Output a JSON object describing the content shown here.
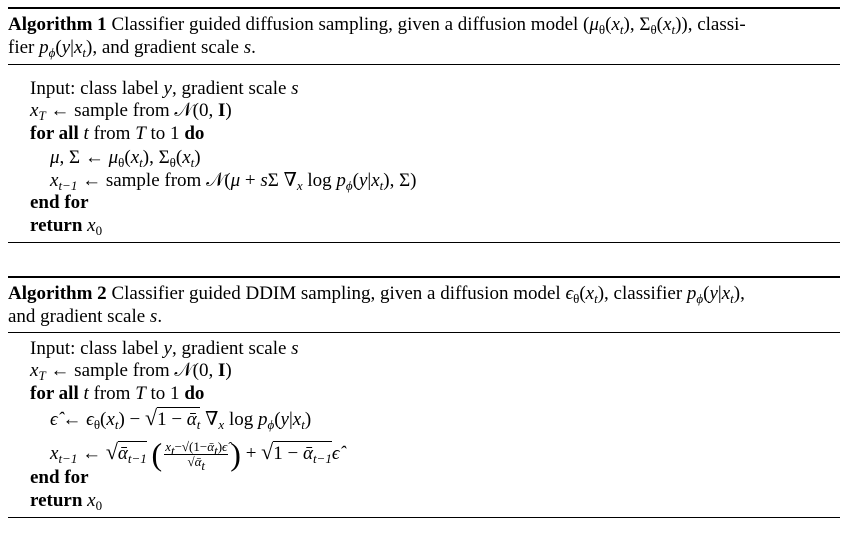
{
  "algorithms": [
    {
      "title_lines": [
        [
          [
            "b",
            "Algorithm 1"
          ],
          [
            "r",
            " Classifier guided diffusion sampling, given a diffusion model ("
          ],
          [
            "i",
            "μ"
          ],
          [
            "sr",
            "θ"
          ],
          [
            "r",
            "("
          ],
          [
            "i",
            "x"
          ],
          [
            "s",
            "t"
          ],
          [
            "r",
            "), Σ"
          ],
          [
            "sr",
            "θ"
          ],
          [
            "r",
            "("
          ],
          [
            "i",
            "x"
          ],
          [
            "s",
            "t"
          ],
          [
            "r",
            ")), classi-"
          ]
        ],
        [
          [
            "r",
            "fier "
          ],
          [
            "i",
            "p"
          ],
          [
            "s",
            "ϕ"
          ],
          [
            "r",
            "("
          ],
          [
            "i",
            "y"
          ],
          [
            "r",
            "|"
          ],
          [
            "i",
            "x"
          ],
          [
            "s",
            "t"
          ],
          [
            "r",
            "), and gradient scale "
          ],
          [
            "i",
            "s"
          ],
          [
            "r",
            "."
          ]
        ]
      ],
      "body_lines": [
        {
          "indent": 0,
          "seg": [
            [
              "r",
              "Input: class label "
            ],
            [
              "i",
              "y"
            ],
            [
              "r",
              ", gradient scale "
            ],
            [
              "i",
              "s"
            ]
          ]
        },
        {
          "indent": 0,
          "seg": [
            [
              "i",
              "x"
            ],
            [
              "s",
              "T"
            ],
            [
              "r",
              " ← sample from 𝒩(0, "
            ],
            [
              "b",
              "I"
            ],
            [
              "r",
              ")"
            ]
          ]
        },
        {
          "indent": 0,
          "seg": [
            [
              "b",
              "for all "
            ],
            [
              "i",
              "t"
            ],
            [
              "r",
              " from "
            ],
            [
              "i",
              "T"
            ],
            [
              "r",
              " to 1 "
            ],
            [
              "b",
              "do"
            ]
          ]
        },
        {
          "indent": 1,
          "seg": [
            [
              "i",
              "μ"
            ],
            [
              "r",
              ", Σ ← "
            ],
            [
              "i",
              "μ"
            ],
            [
              "sr",
              "θ"
            ],
            [
              "r",
              "("
            ],
            [
              "i",
              "x"
            ],
            [
              "s",
              "t"
            ],
            [
              "r",
              "), Σ"
            ],
            [
              "sr",
              "θ"
            ],
            [
              "r",
              "("
            ],
            [
              "i",
              "x"
            ],
            [
              "s",
              "t"
            ],
            [
              "r",
              ")"
            ]
          ]
        },
        {
          "indent": 1,
          "seg": [
            [
              "i",
              "x"
            ],
            [
              "s",
              "t−1"
            ],
            [
              "r",
              " ← sample from 𝒩("
            ],
            [
              "i",
              "μ"
            ],
            [
              "r",
              " + "
            ],
            [
              "i",
              "s"
            ],
            [
              "r",
              "Σ ∇"
            ],
            [
              "s",
              "x"
            ],
            [
              "r",
              "  log "
            ],
            [
              "i",
              "p"
            ],
            [
              "s",
              "ϕ"
            ],
            [
              "r",
              "("
            ],
            [
              "i",
              "y"
            ],
            [
              "r",
              "|"
            ],
            [
              "i",
              "x"
            ],
            [
              "s",
              "t"
            ],
            [
              "r",
              "), Σ)"
            ]
          ]
        },
        {
          "indent": 0,
          "seg": [
            [
              "b",
              "end for"
            ]
          ]
        },
        {
          "indent": 0,
          "seg": [
            [
              "b",
              "return "
            ],
            [
              "i",
              "x"
            ],
            [
              "sr",
              "0"
            ]
          ]
        }
      ]
    },
    {
      "title_lines": [
        [
          [
            "b",
            "Algorithm 2"
          ],
          [
            "r",
            " Classifier guided DDIM sampling, given a diffusion model "
          ],
          [
            "i",
            "ϵ"
          ],
          [
            "sr",
            "θ"
          ],
          [
            "r",
            "("
          ],
          [
            "i",
            "x"
          ],
          [
            "s",
            "t"
          ],
          [
            "r",
            "), classifier "
          ],
          [
            "i",
            "p"
          ],
          [
            "s",
            "ϕ"
          ],
          [
            "r",
            "("
          ],
          [
            "i",
            "y"
          ],
          [
            "r",
            "|"
          ],
          [
            "i",
            "x"
          ],
          [
            "s",
            "t"
          ],
          [
            "r",
            "),"
          ]
        ],
        [
          [
            "r",
            "and gradient scale "
          ],
          [
            "i",
            "s"
          ],
          [
            "r",
            "."
          ]
        ]
      ],
      "body_lines": [
        {
          "indent": 0,
          "seg": [
            [
              "r",
              "Input: class label "
            ],
            [
              "i",
              "y"
            ],
            [
              "r",
              ", gradient scale "
            ],
            [
              "i",
              "s"
            ]
          ]
        },
        {
          "indent": 0,
          "seg": [
            [
              "i",
              "x"
            ],
            [
              "s",
              "T"
            ],
            [
              "r",
              " ← sample from 𝒩(0, "
            ],
            [
              "b",
              "I"
            ],
            [
              "r",
              ")"
            ]
          ]
        },
        {
          "indent": 0,
          "seg": [
            [
              "b",
              "for all "
            ],
            [
              "i",
              "t"
            ],
            [
              "r",
              " from "
            ],
            [
              "i",
              "T"
            ],
            [
              "r",
              " to 1 "
            ],
            [
              "b",
              "do"
            ]
          ]
        },
        {
          "indent": 1,
          "seg": [
            [
              "i",
              "ϵ̂"
            ],
            [
              "r",
              " ← "
            ],
            [
              "i",
              "ϵ"
            ],
            [
              "sr",
              "θ"
            ],
            [
              "r",
              "("
            ],
            [
              "i",
              "x"
            ],
            [
              "s",
              "t"
            ],
            [
              "r",
              ") − "
            ],
            [
              "sqrt",
              [
                [
                  "r",
                  "1 − "
                ],
                [
                  "i",
                  "ᾱ"
                ],
                [
                  "s",
                  "t"
                ]
              ]
            ],
            [
              "r",
              " ∇"
            ],
            [
              "s",
              "x"
            ],
            [
              "r",
              "  log "
            ],
            [
              "i",
              "p"
            ],
            [
              "s",
              "ϕ"
            ],
            [
              "r",
              "("
            ],
            [
              "i",
              "y"
            ],
            [
              "r",
              "|"
            ],
            [
              "i",
              "x"
            ],
            [
              "s",
              "t"
            ],
            [
              "r",
              ")"
            ]
          ]
        },
        {
          "indent": 1,
          "seg": [
            [
              "i",
              "x"
            ],
            [
              "s",
              "t−1"
            ],
            [
              "r",
              " ← "
            ],
            [
              "sqrt",
              [
                [
                  "i",
                  "ᾱ"
                ],
                [
                  "s",
                  "t−1"
                ]
              ]
            ],
            [
              "r",
              " "
            ],
            [
              "bigp",
              "("
            ],
            [
              "frac",
              [
                [
                  "i",
                  "x"
                ],
                [
                  "s",
                  "t"
                ],
                [
                  "r",
                  "−√(1−"
                ],
                [
                  "i",
                  "ᾱ"
                ],
                [
                  "s",
                  "t"
                ],
                [
                  "r",
                  ")"
                ],
                [
                  "i",
                  "ϵ̂"
                ]
              ],
              [
                [
                  "r",
                  "√"
                ],
                [
                  "i",
                  "ᾱ"
                ],
                [
                  "s",
                  "t"
                ]
              ]
            ],
            [
              "bigp",
              ")"
            ],
            [
              "r",
              " + "
            ],
            [
              "sqrt",
              [
                [
                  "r",
                  "1 − "
                ],
                [
                  "i",
                  "ᾱ"
                ],
                [
                  "s",
                  "t−1"
                ]
              ]
            ],
            [
              "i",
              "ϵ̂"
            ]
          ]
        },
        {
          "indent": 0,
          "seg": [
            [
              "b",
              "end for"
            ]
          ]
        },
        {
          "indent": 0,
          "seg": [
            [
              "b",
              "return "
            ],
            [
              "i",
              "x"
            ],
            [
              "sr",
              "0"
            ]
          ]
        }
      ]
    }
  ]
}
